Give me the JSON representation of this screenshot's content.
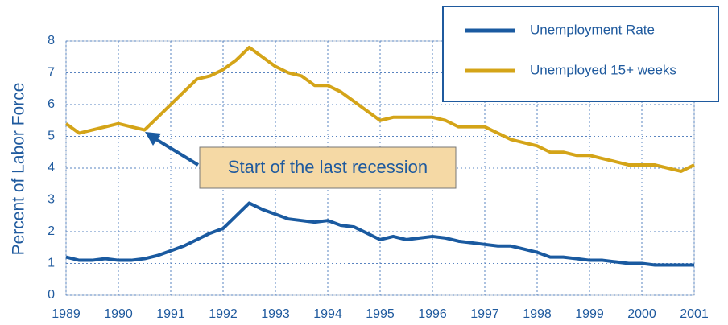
{
  "chart_data": {
    "type": "line",
    "y_label": "Percent of Labor Force",
    "annotation": "Start of the last recession",
    "x": [
      1989,
      1989.25,
      1989.5,
      1989.75,
      1990,
      1990.25,
      1990.5,
      1990.75,
      1991,
      1991.25,
      1991.5,
      1991.75,
      1992,
      1992.25,
      1992.5,
      1992.75,
      1993,
      1993.25,
      1993.5,
      1993.75,
      1994,
      1994.25,
      1994.5,
      1994.75,
      1995,
      1995.25,
      1995.5,
      1995.75,
      1996,
      1996.25,
      1996.5,
      1996.75,
      1997,
      1997.25,
      1997.5,
      1997.75,
      1998,
      1998.25,
      1998.5,
      1998.75,
      1999,
      1999.25,
      1999.5,
      1999.75,
      2000,
      2000.25,
      2000.5,
      2000.75,
      2001
    ],
    "series": [
      {
        "name": "Unemployment Rate",
        "color": "#1a5aa0",
        "values": [
          1.2,
          1.1,
          1.1,
          1.15,
          1.1,
          1.1,
          1.15,
          1.25,
          1.4,
          1.55,
          1.75,
          1.95,
          2.1,
          2.5,
          2.9,
          2.7,
          2.55,
          2.4,
          2.35,
          2.3,
          2.35,
          2.2,
          2.15,
          1.95,
          1.75,
          1.85,
          1.75,
          1.8,
          1.85,
          1.8,
          1.7,
          1.65,
          1.6,
          1.55,
          1.55,
          1.45,
          1.35,
          1.2,
          1.2,
          1.15,
          1.1,
          1.1,
          1.05,
          1.0,
          1.0,
          0.95,
          0.95,
          0.95,
          0.95
        ]
      },
      {
        "name": "Unemployed 15+ weeks",
        "color": "#d4a418",
        "values": [
          5.4,
          5.1,
          5.2,
          5.3,
          5.4,
          5.3,
          5.2,
          5.6,
          6.0,
          6.4,
          6.8,
          6.9,
          7.1,
          7.4,
          7.8,
          7.5,
          7.2,
          7.0,
          6.9,
          6.6,
          6.6,
          6.4,
          6.1,
          5.8,
          5.5,
          5.6,
          5.6,
          5.6,
          5.6,
          5.5,
          5.3,
          5.3,
          5.3,
          5.1,
          4.9,
          4.8,
          4.7,
          4.5,
          4.5,
          4.4,
          4.4,
          4.3,
          4.2,
          4.1,
          4.1,
          4.1,
          4.0,
          3.9,
          4.1
        ]
      }
    ],
    "xlim": [
      1989,
      2001
    ],
    "xticks": [
      1989,
      1990,
      1991,
      1992,
      1993,
      1994,
      1995,
      1996,
      1997,
      1998,
      1999,
      2000,
      2001
    ],
    "ylim": [
      0,
      8
    ],
    "yticks": [
      0,
      1,
      2,
      3,
      4,
      5,
      6,
      7,
      8
    ],
    "grid": true
  }
}
